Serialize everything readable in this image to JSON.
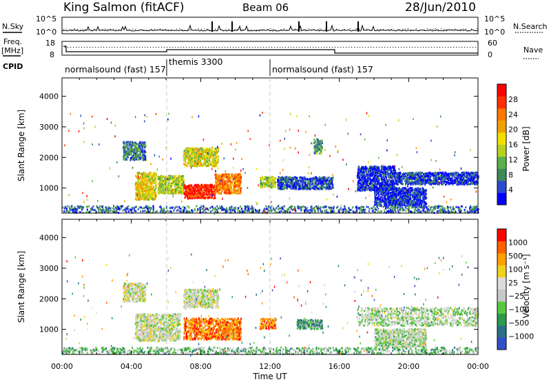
{
  "header": {
    "station": "King Salmon (fitACF)",
    "beam": "Beam 06",
    "date": "28/Jun/2010"
  },
  "panels": {
    "noise": {
      "left_label": "N.Sky",
      "right_label": "N.Search",
      "left_ticks": [
        "10^5",
        "10^0"
      ],
      "right_ticks": [
        "10^5",
        "10^0"
      ]
    },
    "freq": {
      "left_label": "Freq.",
      "left_unit": "[MHz]",
      "right_label": "Nave",
      "left_ticks": [
        "18",
        "8"
      ],
      "right_ticks": [
        "60",
        "0"
      ]
    },
    "cpid": {
      "label": "CPID",
      "segments": [
        "normalsound (fast) 157",
        "themis 3300",
        "normalsound (fast) 157"
      ]
    }
  },
  "colors": {
    "power_scale": [
      "#0000ff",
      "#2c4ad0",
      "#3a8a5a",
      "#5ab04a",
      "#b8d020",
      "#f0e000",
      "#f0a000",
      "#ff7800",
      "#ff3000",
      "#ff0000"
    ],
    "velocity_scale": [
      "#3050c8",
      "#2a6e8a",
      "#2e9a4e",
      "#58c840",
      "#c8c8c8",
      "#dcdcdc",
      "#f0d020",
      "#ffa000",
      "#ff6000",
      "#ff0000"
    ]
  },
  "chart_data": [
    {
      "type": "heatmap",
      "name": "power",
      "xlabel": "",
      "ylabel": "Slant Range [km]",
      "xlim": [
        0,
        24
      ],
      "ylim": [
        180,
        4600
      ],
      "yticks": [
        "1000",
        "2000",
        "3000",
        "4000"
      ],
      "colorbar_label": "Power [dB]",
      "colorbar_ticks": [
        "28",
        "24",
        "20",
        "16",
        "12",
        "8",
        "4"
      ],
      "regions": [
        {
          "t0": 4.2,
          "t1": 5.4,
          "r0": 600,
          "r1": 1500,
          "level": 0.55
        },
        {
          "t0": 5.5,
          "t1": 7.0,
          "r0": 800,
          "r1": 1400,
          "level": 0.45
        },
        {
          "t0": 7.0,
          "t1": 8.8,
          "r0": 650,
          "r1": 1100,
          "level": 0.9
        },
        {
          "t0": 8.8,
          "t1": 10.3,
          "r0": 800,
          "r1": 1450,
          "level": 0.72
        },
        {
          "t0": 7.0,
          "t1": 9.0,
          "r0": 1700,
          "r1": 2300,
          "level": 0.5
        },
        {
          "t0": 3.5,
          "t1": 4.8,
          "r0": 1900,
          "r1": 2500,
          "level": 0.25
        },
        {
          "t0": 11.4,
          "t1": 12.3,
          "r0": 1000,
          "r1": 1350,
          "level": 0.45
        },
        {
          "t0": 12.4,
          "t1": 15.6,
          "r0": 950,
          "r1": 1350,
          "level": 0.15
        },
        {
          "t0": 14.5,
          "t1": 15.0,
          "r0": 2100,
          "r1": 2600,
          "level": 0.3
        },
        {
          "t0": 17.0,
          "t1": 19.2,
          "r0": 900,
          "r1": 1700,
          "level": 0.1
        },
        {
          "t0": 19.2,
          "t1": 24.0,
          "r0": 1100,
          "r1": 1500,
          "level": 0.12
        },
        {
          "t0": 18.0,
          "t1": 21.0,
          "r0": 400,
          "r1": 1000,
          "level": 0.1
        },
        {
          "t0": 0.0,
          "t1": 24.0,
          "r0": 180,
          "r1": 400,
          "level": 0.2
        }
      ]
    },
    {
      "type": "heatmap",
      "name": "velocity",
      "xlabel": "Time UT",
      "ylabel": "Slant Range [km]",
      "xlim": [
        0,
        24
      ],
      "ylim": [
        180,
        4600
      ],
      "xticks": [
        "00:00",
        "04:00",
        "08:00",
        "12:00",
        "16:00",
        "20:00",
        "00:00"
      ],
      "yticks": [
        "1000",
        "2000",
        "3000",
        "4000"
      ],
      "colorbar_label": "Velocity [m s⁻¹]",
      "colorbar_ticks": [
        "1000",
        "500",
        "100",
        "25",
        "−25",
        "−100",
        "−500",
        "−1000"
      ],
      "regions": [
        {
          "t0": 4.2,
          "t1": 6.8,
          "r0": 600,
          "r1": 1500,
          "level": 0.5
        },
        {
          "t0": 7.0,
          "t1": 10.3,
          "r0": 650,
          "r1": 1350,
          "level": 0.8
        },
        {
          "t0": 7.0,
          "t1": 9.0,
          "r0": 1700,
          "r1": 2300,
          "level": 0.5
        },
        {
          "t0": 3.5,
          "t1": 4.8,
          "r0": 1900,
          "r1": 2500,
          "level": 0.5
        },
        {
          "t0": 11.4,
          "t1": 12.3,
          "r0": 1000,
          "r1": 1350,
          "level": 0.78
        },
        {
          "t0": 13.5,
          "t1": 15.0,
          "r0": 1000,
          "r1": 1300,
          "level": 0.3
        },
        {
          "t0": 17.0,
          "t1": 24.0,
          "r0": 1100,
          "r1": 1700,
          "level": 0.45
        },
        {
          "t0": 18.0,
          "t1": 21.0,
          "r0": 400,
          "r1": 1000,
          "level": 0.45
        },
        {
          "t0": 0.0,
          "t1": 24.0,
          "r0": 180,
          "r1": 400,
          "level": 0.35
        }
      ]
    }
  ]
}
